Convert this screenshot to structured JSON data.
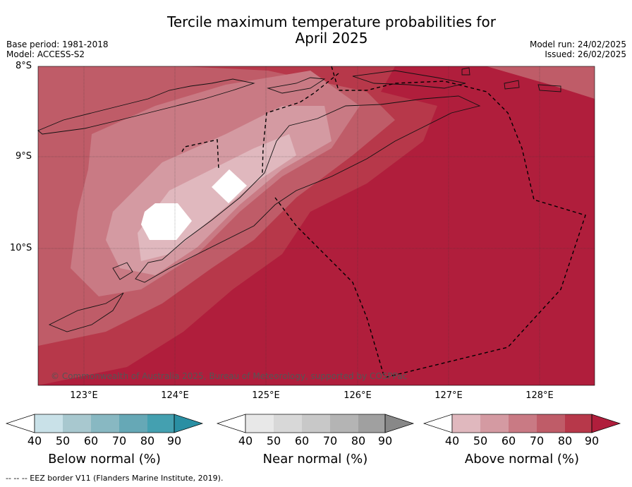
{
  "title_line1": "Tercile maximum temperature probabilities for",
  "title_line2": "April 2025",
  "base_period": "Base period: 1981-2018",
  "model": "Model: ACCESS-S2",
  "model_run": "Model run: 24/02/2025",
  "issued": "Issued: 26/02/2025",
  "lat_labels": [
    "8°S",
    "9°S",
    "10°S"
  ],
  "lon_labels": [
    "123°E",
    "124°E",
    "125°E",
    "126°E",
    "127°E",
    "128°E"
  ],
  "copyright": "© Commonwealth of Australia 2025, Bureau of Meteorology, supported by COSPPac",
  "footnote": "--  --  -- EEZ border V11 (Flanders Marine Institute, 2019).",
  "colorbars": [
    {
      "label": "Below normal (%)",
      "ticks": [
        "40",
        "50",
        "60",
        "70",
        "80",
        "90"
      ],
      "colors": [
        "#ffffff",
        "#c9e1e8",
        "#a8c8cf",
        "#88b8c2",
        "#66a8b6",
        "#44a0b0",
        "#2a8fa3"
      ]
    },
    {
      "label": "Near normal (%)",
      "ticks": [
        "40",
        "50",
        "60",
        "70",
        "80",
        "90"
      ],
      "colors": [
        "#ffffff",
        "#e8e8e8",
        "#d8d8d8",
        "#c8c8c8",
        "#b4b4b4",
        "#a0a0a0",
        "#888888"
      ]
    },
    {
      "label": "Above normal (%)",
      "ticks": [
        "40",
        "50",
        "60",
        "70",
        "80",
        "90"
      ],
      "colors": [
        "#ffffff",
        "#e0b8be",
        "#d49aa2",
        "#c97a84",
        "#bf5c68",
        "#b7384a",
        "#b01e3c"
      ]
    }
  ]
}
